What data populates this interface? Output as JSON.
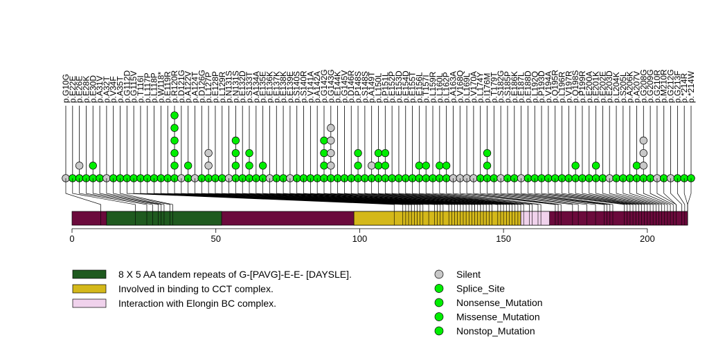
{
  "chart_data": {
    "type": "lollipop",
    "title": "",
    "xlabel": "",
    "ylabel": "",
    "xlim": [
      0,
      214
    ],
    "x_ticks": [
      {
        "value": 0,
        "label": "0"
      },
      {
        "value": 50,
        "label": "50"
      },
      {
        "value": 100,
        "label": "100"
      },
      {
        "value": 150,
        "label": "150"
      },
      {
        "value": 200,
        "label": "200"
      }
    ],
    "mutations": [
      {
        "label": "p.G10G",
        "pos": 10,
        "silent": 1,
        "mutant": 0
      },
      {
        "label": "p.E22E",
        "pos": 22,
        "silent": 0,
        "mutant": 1
      },
      {
        "label": "p.E26E",
        "pos": 26,
        "silent": 1,
        "mutant": 1
      },
      {
        "label": "p.E28K",
        "pos": 28,
        "silent": 0,
        "mutant": 1
      },
      {
        "label": "p.E30D",
        "pos": 30,
        "silent": 0,
        "mutant": 2
      },
      {
        "label": "p.A31V",
        "pos": 31,
        "silent": 0,
        "mutant": 1
      },
      {
        "label": "p.A32T",
        "pos": 32,
        "silent": 1,
        "mutant": 0
      },
      {
        "label": "p.V34F",
        "pos": 34,
        "silent": 0,
        "mutant": 1
      },
      {
        "label": "p.A35T",
        "pos": 35,
        "silent": 0,
        "mutant": 1
      },
      {
        "label": "p.G112D",
        "pos": 112,
        "silent": 0,
        "mutant": 1
      },
      {
        "label": "p.G115V",
        "pos": 115,
        "silent": 0,
        "mutant": 1
      },
      {
        "label": "p.T116I",
        "pos": 116,
        "silent": 0,
        "mutant": 1
      },
      {
        "label": "p.L117P",
        "pos": 117,
        "silent": 0,
        "mutant": 1
      },
      {
        "label": "p.L118P",
        "pos": 118,
        "silent": 0,
        "mutant": 1
      },
      {
        "label": "p.W118*",
        "pos": 118,
        "silent": 0,
        "mutant": 1
      },
      {
        "label": "p.E119R",
        "pos": 119,
        "silent": 0,
        "mutant": 1
      },
      {
        "label": "p.R120R",
        "pos": 120,
        "silent": 0,
        "mutant": 6
      },
      {
        "label": "p.D121G",
        "pos": 121,
        "silent": 1,
        "mutant": 0
      },
      {
        "label": "p.A122V",
        "pos": 122,
        "silent": 0,
        "mutant": 2
      },
      {
        "label": "p.A124T",
        "pos": 124,
        "silent": 1,
        "mutant": 0
      },
      {
        "label": "p.D126G",
        "pos": 126,
        "silent": 0,
        "mutant": 1
      },
      {
        "label": "p.L127P",
        "pos": 127,
        "silent": 2,
        "mutant": 1
      },
      {
        "label": "p.E128P",
        "pos": 128,
        "silent": 0,
        "mutant": 1
      },
      {
        "label": "p.L129R",
        "pos": 129,
        "silent": 0,
        "mutant": 1
      },
      {
        "label": "p.N131S",
        "pos": 131,
        "silent": 1,
        "mutant": 0
      },
      {
        "label": "p.N131S",
        "pos": 131,
        "silent": 0,
        "mutant": 4
      },
      {
        "label": "p.E132D",
        "pos": 132,
        "silent": 0,
        "mutant": 1
      },
      {
        "label": "p.S133T",
        "pos": 133,
        "silent": 0,
        "mutant": 3
      },
      {
        "label": "p.A134A",
        "pos": 134,
        "silent": 0,
        "mutant": 1
      },
      {
        "label": "p.E135E",
        "pos": 135,
        "silent": 0,
        "mutant": 2
      },
      {
        "label": "p.E136K",
        "pos": 136,
        "silent": 1,
        "mutant": 0
      },
      {
        "label": "p.E137K",
        "pos": 137,
        "silent": 0,
        "mutant": 1
      },
      {
        "label": "p.E138K",
        "pos": 138,
        "silent": 0,
        "mutant": 1
      },
      {
        "label": "p.E139E",
        "pos": 139,
        "silent": 1,
        "mutant": 0
      },
      {
        "label": "p.S140S",
        "pos": 140,
        "silent": 0,
        "mutant": 1
      },
      {
        "label": "p.S140R",
        "pos": 140,
        "silent": 0,
        "mutant": 1
      },
      {
        "label": "p.V141A",
        "pos": 141,
        "silent": 0,
        "mutant": 1
      },
      {
        "label": "p.A142A",
        "pos": 142,
        "silent": 0,
        "mutant": 1
      },
      {
        "label": "p.G142G",
        "pos": 142,
        "silent": 0,
        "mutant": 4
      },
      {
        "label": "p.G143G",
        "pos": 143,
        "silent": 4,
        "mutant": 1
      },
      {
        "label": "p.E144K",
        "pos": 144,
        "silent": 0,
        "mutant": 1
      },
      {
        "label": "p.G145V",
        "pos": 145,
        "silent": 0,
        "mutant": 1
      },
      {
        "label": "p.D146R",
        "pos": 146,
        "silent": 0,
        "mutant": 1
      },
      {
        "label": "p.P148S",
        "pos": 148,
        "silent": 0,
        "mutant": 3
      },
      {
        "label": "p.S148S",
        "pos": 148,
        "silent": 0,
        "mutant": 1
      },
      {
        "label": "p.A149T",
        "pos": 149,
        "silent": 1,
        "mutant": 1
      },
      {
        "label": "p.L150L",
        "pos": 150,
        "silent": 0,
        "mutant": 3
      },
      {
        "label": "p.P151L",
        "pos": 151,
        "silent": 0,
        "mutant": 3
      },
      {
        "label": "p.E152P",
        "pos": 152,
        "silent": 0,
        "mutant": 1
      },
      {
        "label": "p.E153D",
        "pos": 153,
        "silent": 0,
        "mutant": 1
      },
      {
        "label": "p.E154D",
        "pos": 154,
        "silent": 0,
        "mutant": 1
      },
      {
        "label": "p.E155T",
        "pos": 155,
        "silent": 0,
        "mutant": 1
      },
      {
        "label": "p.E156L",
        "pos": 156,
        "silent": 0,
        "mutant": 2
      },
      {
        "label": "p.T157I",
        "pos": 157,
        "silent": 0,
        "mutant": 2
      },
      {
        "label": "p.L159R",
        "pos": 159,
        "silent": 0,
        "mutant": 1
      },
      {
        "label": "p.L160L",
        "pos": 160,
        "silent": 0,
        "mutant": 2
      },
      {
        "label": "p.L162P",
        "pos": 162,
        "silent": 0,
        "mutant": 2
      },
      {
        "label": "p.A163A",
        "pos": 163,
        "silent": 1,
        "mutant": 0
      },
      {
        "label": "p.V168Q",
        "pos": 168,
        "silent": 1,
        "mutant": 0
      },
      {
        "label": "p.L169L",
        "pos": 169,
        "silent": 1,
        "mutant": 0
      },
      {
        "label": "p.V170A",
        "pos": 170,
        "silent": 1,
        "mutant": 0
      },
      {
        "label": "p.L174Y",
        "pos": 174,
        "silent": 0,
        "mutant": 1
      },
      {
        "label": "p.I176M",
        "pos": 176,
        "silent": 0,
        "mutant": 3
      },
      {
        "label": "p.T179T",
        "pos": 179,
        "silent": 0,
        "mutant": 1
      },
      {
        "label": "p.S182G",
        "pos": 182,
        "silent": 1,
        "mutant": 0
      },
      {
        "label": "p.S185P",
        "pos": 185,
        "silent": 0,
        "mutant": 1
      },
      {
        "label": "p.E186K",
        "pos": 186,
        "silent": 0,
        "mutant": 1
      },
      {
        "label": "p.E187L",
        "pos": 187,
        "silent": 1,
        "mutant": 0
      },
      {
        "label": "p.E188D",
        "pos": 188,
        "silent": 0,
        "mutant": 1
      },
      {
        "label": "p.L192Q",
        "pos": 192,
        "silent": 0,
        "mutant": 1
      },
      {
        "label": "p.P193D",
        "pos": 193,
        "silent": 0,
        "mutant": 1
      },
      {
        "label": "p.V194A",
        "pos": 194,
        "silent": 0,
        "mutant": 1
      },
      {
        "label": "p.Q195R",
        "pos": 195,
        "silent": 0,
        "mutant": 1
      },
      {
        "label": "p.L196R",
        "pos": 196,
        "silent": 0,
        "mutant": 1
      },
      {
        "label": "p.V197R",
        "pos": 197,
        "silent": 0,
        "mutant": 1
      },
      {
        "label": "p.Q198S",
        "pos": 198,
        "silent": 0,
        "mutant": 2
      },
      {
        "label": "p.P199R",
        "pos": 199,
        "silent": 0,
        "mutant": 1
      },
      {
        "label": "p.E200A",
        "pos": 200,
        "silent": 0,
        "mutant": 1
      },
      {
        "label": "p.E201K",
        "pos": 201,
        "silent": 0,
        "mutant": 2
      },
      {
        "label": "p.E202E",
        "pos": 202,
        "silent": 0,
        "mutant": 1
      },
      {
        "label": "p.E203D",
        "pos": 203,
        "silent": 1,
        "mutant": 0
      },
      {
        "label": "p.L204K",
        "pos": 204,
        "silent": 0,
        "mutant": 1
      },
      {
        "label": "p.S205L",
        "pos": 205,
        "silent": 0,
        "mutant": 1
      },
      {
        "label": "p.A206K",
        "pos": 206,
        "silent": 0,
        "mutant": 1
      },
      {
        "label": "p.A207V",
        "pos": 207,
        "silent": 0,
        "mutant": 2
      },
      {
        "label": "p.G208G",
        "pos": 208,
        "silent": 3,
        "mutant": 1
      },
      {
        "label": "p.G209G",
        "pos": 209,
        "silent": 0,
        "mutant": 1
      },
      {
        "label": "p.G210R",
        "pos": 210,
        "silent": 1,
        "mutant": 0
      },
      {
        "label": "p.M210R",
        "pos": 210,
        "silent": 0,
        "mutant": 1
      },
      {
        "label": "p.G212G",
        "pos": 212,
        "silent": 1,
        "mutant": 0
      },
      {
        "label": "p.G213F",
        "pos": 213,
        "silent": 0,
        "mutant": 1
      },
      {
        "label": "p.*214R",
        "pos": 214,
        "silent": 0,
        "mutant": 1
      },
      {
        "label": "p.*214W",
        "pos": 214,
        "silent": 0,
        "mutant": 1
      }
    ],
    "domains": [
      {
        "start": 1,
        "end": 214,
        "color": "#6b0a3c",
        "legend": null
      },
      {
        "start": 13,
        "end": 52,
        "color": "#1f5a1f",
        "legend": "8 X 5 AA tandem repeats of G-[PAVG]-E-E- [DAYSLE]."
      },
      {
        "start": 99,
        "end": 157,
        "color": "#d4b81a",
        "legend": "Involved in binding to CCT complex."
      },
      {
        "start": 157,
        "end": 166,
        "color": "#f0d2ec",
        "legend": "Interaction with Elongin BC complex."
      }
    ],
    "legend_left": [
      {
        "label": "8 X 5 AA tandem repeats of G-[PAVG]-E-E- [DAYSLE].",
        "color": "#1f5a1f"
      },
      {
        "label": "Involved in binding to CCT complex.",
        "color": "#d4b81a"
      },
      {
        "label": "Interaction with Elongin BC complex.",
        "color": "#f0d2ec"
      }
    ],
    "legend_right": [
      {
        "label": "Silent",
        "color": "#c8c8c8"
      },
      {
        "label": "Splice_Site",
        "color": "#00ee00"
      },
      {
        "label": "Nonsense_Mutation",
        "color": "#00ee00"
      },
      {
        "label": "Missense_Mutation",
        "color": "#00ee00"
      },
      {
        "label": "Nonstop_Mutation",
        "color": "#00ee00"
      }
    ]
  }
}
